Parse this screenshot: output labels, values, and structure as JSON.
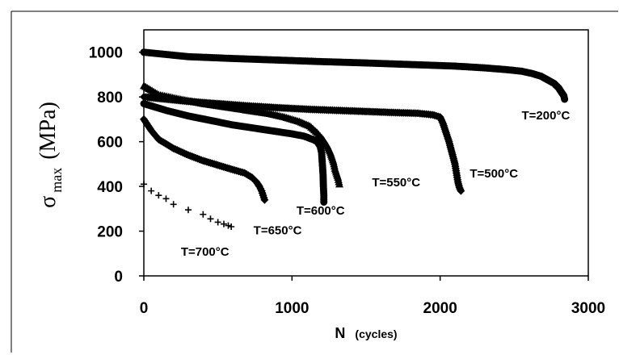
{
  "chart_data": {
    "type": "scatter",
    "title": "",
    "xlabel": "N",
    "xlabel_unit": "(cycles)",
    "ylabel": "σ",
    "ylabel_sub": "max",
    "ylabel_unit": "(MPa)",
    "xlim": [
      0,
      3000
    ],
    "ylim": [
      0,
      1100
    ],
    "xticks": [
      0,
      1000,
      2000,
      3000
    ],
    "yticks": [
      0,
      200,
      400,
      600,
      800,
      1000
    ],
    "grid": false,
    "legend": "none",
    "series": [
      {
        "label": "T=200°C",
        "marker": "circle",
        "points": [
          [
            0,
            1000
          ],
          [
            300,
            980
          ],
          [
            600,
            972
          ],
          [
            900,
            965
          ],
          [
            1200,
            958
          ],
          [
            1500,
            952
          ],
          [
            1800,
            945
          ],
          [
            2100,
            938
          ],
          [
            2300,
            930
          ],
          [
            2450,
            922
          ],
          [
            2550,
            915
          ],
          [
            2620,
            905
          ],
          [
            2680,
            893
          ],
          [
            2730,
            875
          ],
          [
            2770,
            860
          ],
          [
            2800,
            840
          ],
          [
            2820,
            820
          ],
          [
            2835,
            805
          ],
          [
            2840,
            790
          ]
        ]
      },
      {
        "label": "T=500°C",
        "marker": "diamond",
        "points": [
          [
            0,
            800
          ],
          [
            150,
            790
          ],
          [
            300,
            780
          ],
          [
            500,
            770
          ],
          [
            700,
            760
          ],
          [
            900,
            752
          ],
          [
            1100,
            745
          ],
          [
            1300,
            740
          ],
          [
            1500,
            735
          ],
          [
            1700,
            730
          ],
          [
            1850,
            727
          ],
          [
            1950,
            720
          ],
          [
            2000,
            710
          ],
          [
            2020,
            680
          ],
          [
            2040,
            640
          ],
          [
            2060,
            600
          ],
          [
            2080,
            550
          ],
          [
            2100,
            500
          ],
          [
            2110,
            460
          ],
          [
            2120,
            420
          ],
          [
            2130,
            395
          ],
          [
            2140,
            380
          ]
        ]
      },
      {
        "label": "T=550°C",
        "marker": "triangle",
        "points": [
          [
            0,
            850
          ],
          [
            100,
            810
          ],
          [
            250,
            790
          ],
          [
            400,
            770
          ],
          [
            550,
            755
          ],
          [
            700,
            740
          ],
          [
            850,
            725
          ],
          [
            950,
            710
          ],
          [
            1050,
            690
          ],
          [
            1120,
            670
          ],
          [
            1170,
            640
          ],
          [
            1210,
            610
          ],
          [
            1240,
            580
          ],
          [
            1260,
            550
          ],
          [
            1280,
            510
          ],
          [
            1290,
            480
          ],
          [
            1310,
            440
          ],
          [
            1320,
            410
          ]
        ]
      },
      {
        "label": "T=600°C",
        "marker": "circle",
        "points": [
          [
            0,
            770
          ],
          [
            150,
            740
          ],
          [
            300,
            715
          ],
          [
            450,
            695
          ],
          [
            600,
            675
          ],
          [
            750,
            660
          ],
          [
            900,
            645
          ],
          [
            1000,
            635
          ],
          [
            1080,
            625
          ],
          [
            1140,
            610
          ],
          [
            1170,
            600
          ],
          [
            1190,
            580
          ],
          [
            1200,
            550
          ],
          [
            1205,
            500
          ],
          [
            1210,
            450
          ],
          [
            1212,
            400
          ],
          [
            1215,
            360
          ],
          [
            1215,
            330
          ]
        ]
      },
      {
        "label": "T=650°C",
        "marker": "diamond",
        "points": [
          [
            0,
            700
          ],
          [
            50,
            650
          ],
          [
            100,
            610
          ],
          [
            200,
            570
          ],
          [
            300,
            540
          ],
          [
            400,
            515
          ],
          [
            500,
            495
          ],
          [
            600,
            475
          ],
          [
            680,
            460
          ],
          [
            730,
            440
          ],
          [
            760,
            420
          ],
          [
            780,
            400
          ],
          [
            795,
            380
          ],
          [
            805,
            360
          ],
          [
            815,
            340
          ]
        ]
      },
      {
        "label": "T=700°C",
        "marker": "plus",
        "points": [
          [
            0,
            410
          ],
          [
            50,
            380
          ],
          [
            100,
            360
          ],
          [
            150,
            345
          ],
          [
            200,
            320
          ],
          [
            300,
            295
          ],
          [
            400,
            275
          ],
          [
            450,
            255
          ],
          [
            500,
            240
          ],
          [
            540,
            232
          ],
          [
            570,
            225
          ],
          [
            590,
            220
          ]
        ]
      }
    ],
    "annotations": [
      {
        "text": "T=200°C",
        "x": 2550,
        "y": 700
      },
      {
        "text": "T=500°C",
        "x": 2200,
        "y": 440
      },
      {
        "text": "T=550°C",
        "x": 1540,
        "y": 400
      },
      {
        "text": "T=600°C",
        "x": 1030,
        "y": 275
      },
      {
        "text": "T=650°C",
        "x": 740,
        "y": 185
      },
      {
        "text": "T=700°C",
        "x": 250,
        "y": 90
      }
    ]
  }
}
